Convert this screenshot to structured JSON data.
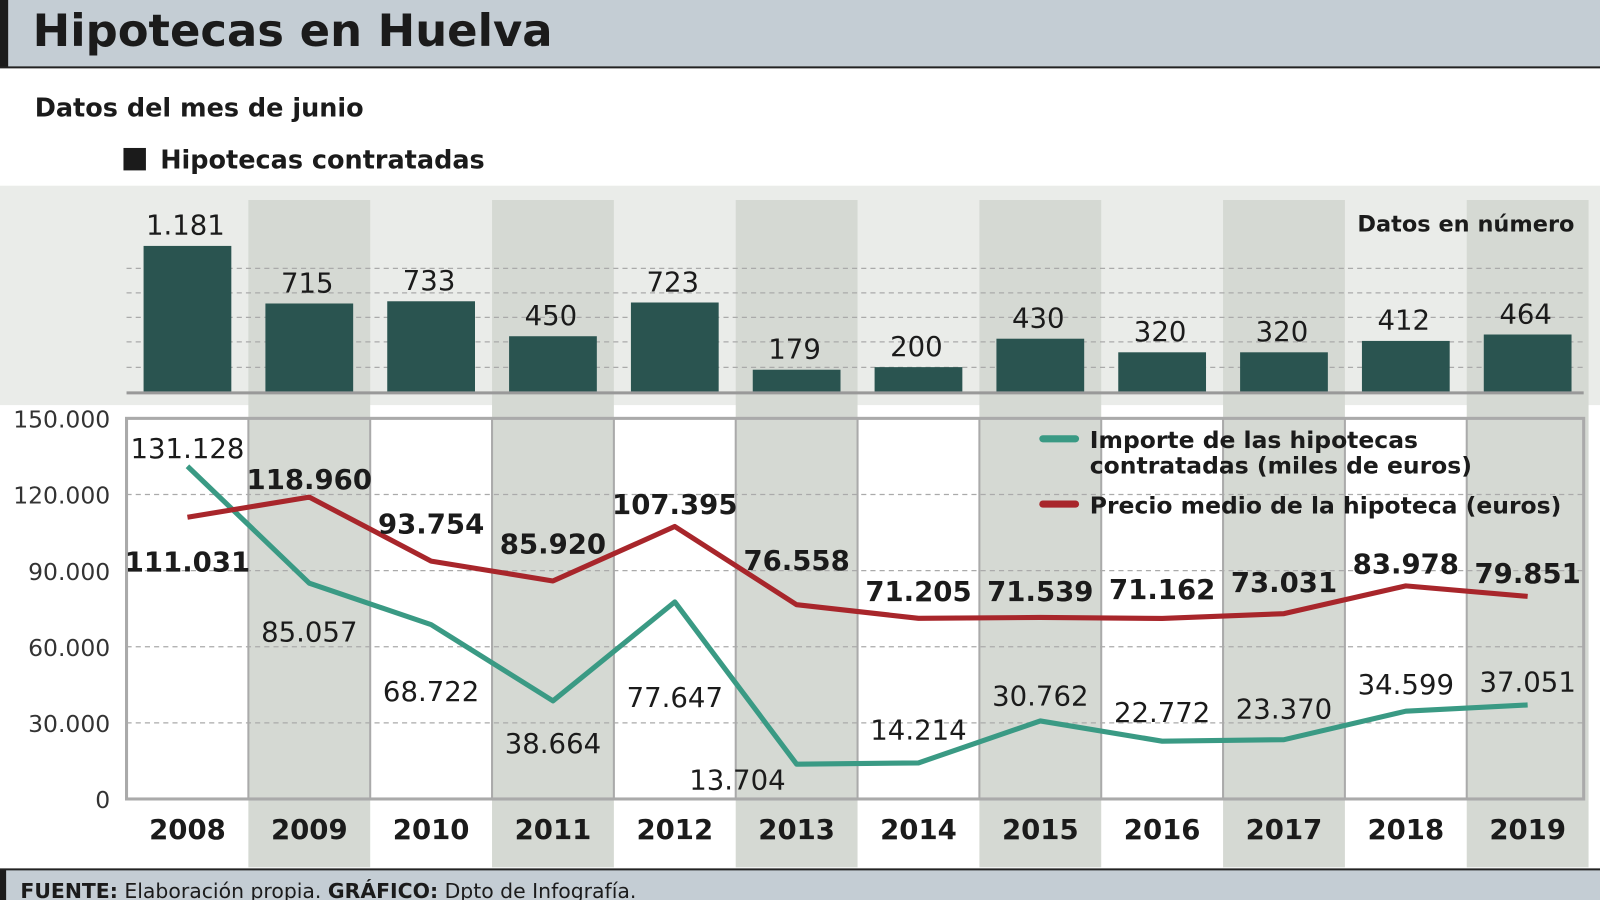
{
  "title": "Hipotecas en Huelva",
  "subtitle": "Datos del mes de junio",
  "colors": {
    "header_bg": "#c4cdd4",
    "bar": "#2a5450",
    "teal": "#3a9a84",
    "red": "#a8262b",
    "shade": "#d5d9d3",
    "panel": "#eaece9"
  },
  "footer": {
    "source_label": "FUENTE:",
    "source_text": "Elaboración propia.",
    "graphic_label": "GRÁFICO:",
    "graphic_text": "Dpto de Infografía."
  },
  "chart_data": [
    {
      "type": "bar",
      "legend": "Hipotecas contratadas",
      "note": "Datos en número",
      "categories": [
        "2008",
        "2009",
        "2010",
        "2011",
        "2012",
        "2013",
        "2014",
        "2015",
        "2016",
        "2017",
        "2018",
        "2019"
      ],
      "values": [
        1181,
        715,
        733,
        450,
        723,
        179,
        200,
        430,
        320,
        320,
        412,
        464
      ],
      "labels": [
        "1.181",
        "715",
        "733",
        "450",
        "723",
        "179",
        "200",
        "430",
        "320",
        "320",
        "412",
        "464"
      ]
    },
    {
      "type": "line",
      "categories": [
        "2008",
        "2009",
        "2010",
        "2011",
        "2012",
        "2013",
        "2014",
        "2015",
        "2016",
        "2017",
        "2018",
        "2019"
      ],
      "ylim": [
        0,
        150000
      ],
      "yticks": [
        "0",
        "30.000",
        "60.000",
        "90.000",
        "120.000",
        "150.000"
      ],
      "grid": true,
      "legend_position": "top-right",
      "series": [
        {
          "name": "Importe de  las hipotecas contratadas (miles de euros)",
          "name_lines": [
            "Importe de  las hipotecas",
            "contratadas (miles de euros)"
          ],
          "color": "#3a9a84",
          "values": [
            131128,
            85057,
            68722,
            38664,
            77647,
            13704,
            14214,
            30762,
            22772,
            23370,
            34599,
            37051
          ],
          "labels": [
            "131.128",
            "85.057",
            "68.722",
            "38.664",
            "77.647",
            "13.704",
            "14.214",
            "30.762",
            "22.772",
            "23.370",
            "34.599",
            "37.051"
          ]
        },
        {
          "name": "Precio medio de la hipoteca (euros)",
          "name_lines": [
            "Precio medio de la hipoteca (euros)"
          ],
          "color": "#a8262b",
          "values": [
            111031,
            118960,
            93754,
            85920,
            107395,
            76558,
            71205,
            71539,
            71162,
            73031,
            83978,
            79851
          ],
          "labels": [
            "111.031",
            "118.960",
            "93.754",
            "85.920",
            "107.395",
            "76.558",
            "71.205",
            "71.539",
            "71.162",
            "73.031",
            "83.978",
            "79.851"
          ]
        }
      ]
    }
  ]
}
